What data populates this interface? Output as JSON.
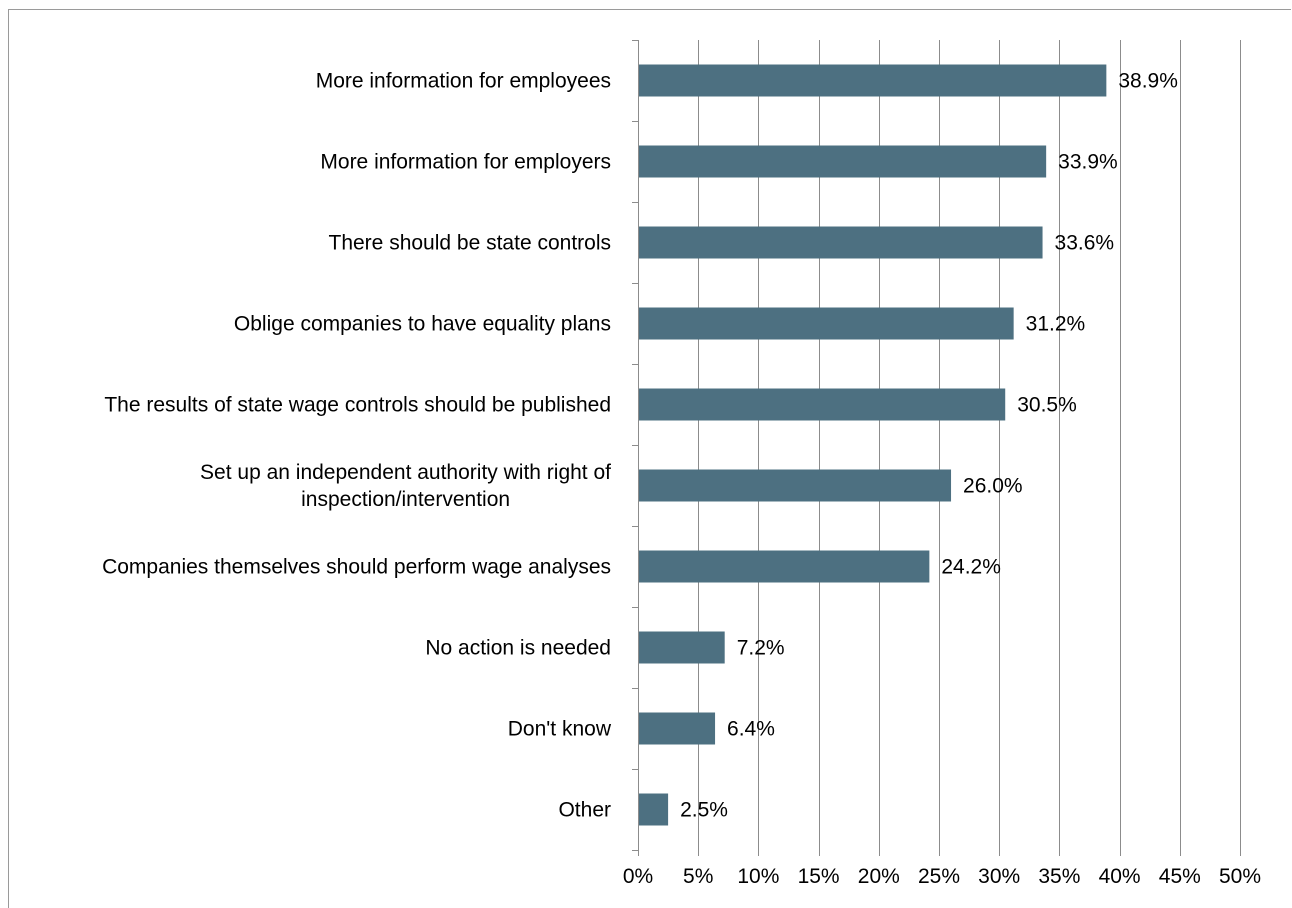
{
  "chart_data": {
    "type": "bar",
    "orientation": "horizontal",
    "title": "",
    "xlabel": "",
    "ylabel": "",
    "categories": [
      "More information for employees",
      "More information for employers",
      "There should be state controls",
      "Oblige companies to have equality plans",
      "The results of state wage controls should be published",
      "Set up an independent authority with right of inspection/intervention",
      "Companies themselves should perform wage analyses",
      "No action is needed",
      "Don't know",
      "Other"
    ],
    "category_display_lines": [
      [
        "More information for employees"
      ],
      [
        "More information for employers"
      ],
      [
        "There should be state controls"
      ],
      [
        "Oblige companies to have equality plans"
      ],
      [
        "The results of state wage controls should be published"
      ],
      [
        "Set up an independent authority with right of",
        "inspection/intervention"
      ],
      [
        "Companies themselves should perform wage analyses"
      ],
      [
        "No action is needed"
      ],
      [
        "Don't know"
      ],
      [
        "Other"
      ]
    ],
    "values": [
      38.9,
      33.9,
      33.6,
      31.2,
      30.5,
      26.0,
      24.2,
      7.2,
      6.4,
      2.5
    ],
    "value_labels": [
      "38.9%",
      "33.9%",
      "33.6%",
      "31.2%",
      "30.5%",
      "26.0%",
      "24.2%",
      "7.2%",
      "6.4%",
      "2.5%"
    ],
    "xlim": [
      0,
      50
    ],
    "x_ticks": [
      0,
      5,
      10,
      15,
      20,
      25,
      30,
      35,
      40,
      45,
      50
    ],
    "x_tick_labels": [
      "0%",
      "5%",
      "10%",
      "15%",
      "20%",
      "25%",
      "30%",
      "35%",
      "40%",
      "45%",
      "50%"
    ],
    "grid": true,
    "legend": "none",
    "bar_color": "#4d7081",
    "grid_color": "#8c8c8c",
    "axis_color": "#8c8c8c"
  }
}
